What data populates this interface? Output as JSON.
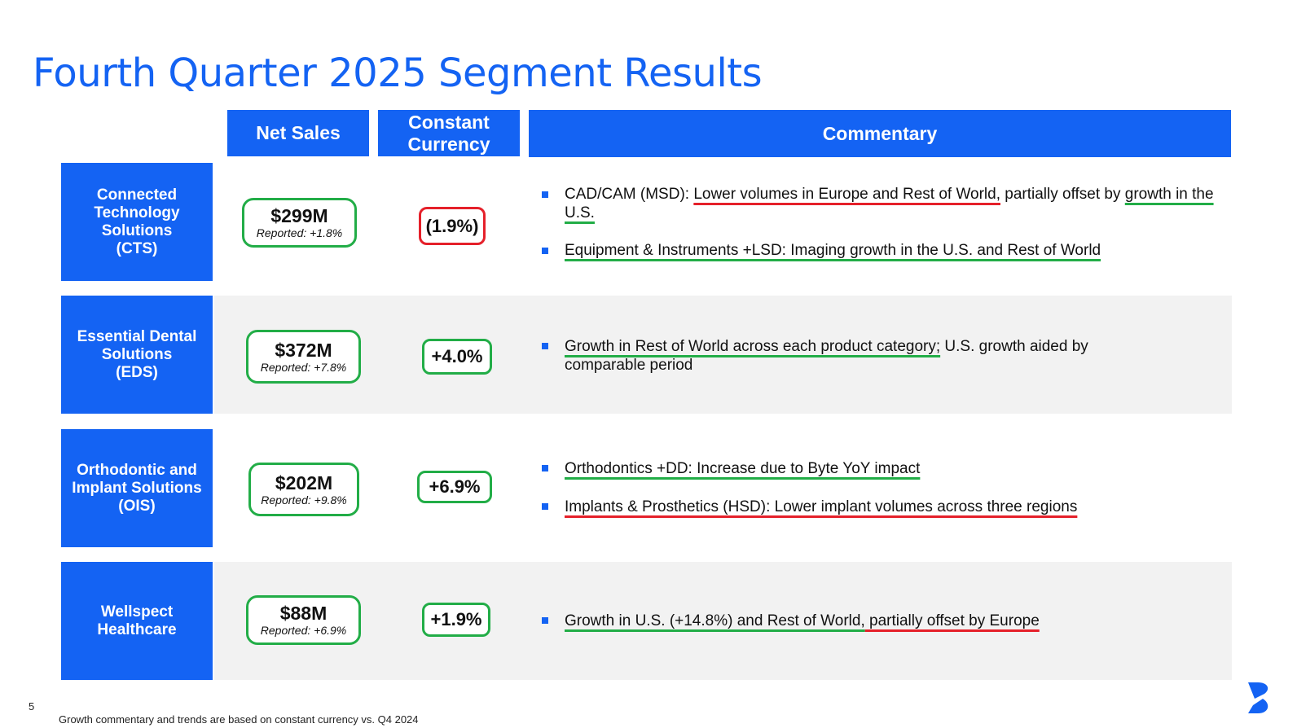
{
  "title": "Fourth Quarter 2025 Segment Results",
  "headers": {
    "net_sales": "Net Sales",
    "cc_line1": "Constant",
    "cc_line2": "Currency",
    "commentary": "Commentary"
  },
  "segments": [
    {
      "name_lines": [
        "Connected",
        "Technology",
        "Solutions",
        "(CTS)"
      ],
      "net_sales": "$299M",
      "reported": "Reported: +1.8%",
      "constant_currency": "(1.9%)",
      "comments": [
        {
          "parts": [
            {
              "t": "CAD/CAM (MSD): ",
              "u": ""
            },
            {
              "t": "Lower volumes in Europe and Rest of World,",
              "u": "r"
            },
            {
              "t": " partially offset by ",
              "u": ""
            },
            {
              "t": "growth in the U.S.",
              "u": "g"
            }
          ]
        },
        {
          "parts": [
            {
              "t": "Equipment & Instruments +LSD: Imaging growth in the U.S. and Rest of World",
              "u": "g"
            }
          ]
        }
      ]
    },
    {
      "name_lines": [
        "Essential Dental",
        "Solutions",
        "(EDS)"
      ],
      "net_sales": "$372M",
      "reported": "Reported: +7.8%",
      "constant_currency": "+4.0%",
      "comments": [
        {
          "parts": [
            {
              "t": "Growth in Rest of World across each product category;",
              "u": "g"
            },
            {
              "t": " U.S. growth aided by comparable period",
              "u": ""
            }
          ]
        }
      ]
    },
    {
      "name_lines": [
        "Orthodontic and",
        "Implant Solutions",
        "(OIS)"
      ],
      "net_sales": "$202M",
      "reported": "Reported: +9.8%",
      "constant_currency": "+6.9%",
      "comments": [
        {
          "parts": [
            {
              "t": "Orthodontics +DD: Increase due to Byte YoY impact",
              "u": "g"
            }
          ]
        },
        {
          "parts": [
            {
              "t": "Implants & Prosthetics (HSD): Lower implant volumes across three regions",
              "u": "r"
            }
          ]
        }
      ]
    },
    {
      "name_lines": [
        "Wellspect",
        "Healthcare"
      ],
      "net_sales": "$88M",
      "reported": "Reported: +6.9%",
      "constant_currency": "+1.9%",
      "comments": [
        {
          "parts": [
            {
              "t": "Growth in U.S. (+14.8%) and Rest of World,",
              "u": "g"
            },
            {
              "t": " partially offset by Europe",
              "u": "r"
            }
          ]
        }
      ]
    }
  ],
  "page_number": "5",
  "footnote": "Growth commentary and trends are based on constant currency vs. Q4 2024",
  "colors": {
    "brand_blue": "#1463f3",
    "positive_green": "#22ad47",
    "negative_red": "#e5202a",
    "row_gray": "#f2f2f2"
  },
  "logo_icon": "dentsply-sirona-logo-icon"
}
